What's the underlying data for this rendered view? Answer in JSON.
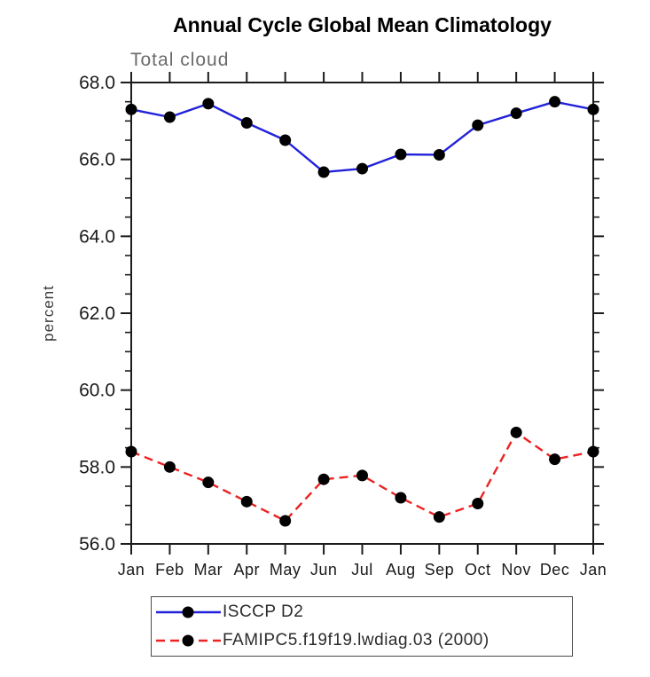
{
  "chart_data": {
    "type": "line",
    "title": "Annual Cycle Global Mean Climatology",
    "subtitle": "Total cloud",
    "ylabel": "percent",
    "xlabel": "",
    "x_categories": [
      "Jan",
      "Feb",
      "Mar",
      "Apr",
      "May",
      "Jun",
      "Jul",
      "Aug",
      "Sep",
      "Oct",
      "Nov",
      "Dec",
      "Jan"
    ],
    "ylim": [
      56.0,
      68.0
    ],
    "y_major_tick_step": 2.0,
    "y_minor_tick_step": 0.5,
    "y_major_tick_labels": [
      "56.0",
      "58.0",
      "60.0",
      "62.0",
      "64.0",
      "66.0",
      "68.0"
    ],
    "grid": "off",
    "legend_position": "below-left",
    "marker": {
      "shape": "filled-circle",
      "color": "#000000"
    },
    "series": [
      {
        "name": "ISCCP D2",
        "line_style": "solid",
        "color": "#2121d9",
        "values": [
          67.3,
          67.1,
          67.45,
          66.95,
          66.5,
          65.67,
          65.76,
          66.13,
          66.12,
          66.89,
          67.2,
          67.5,
          67.3
        ]
      },
      {
        "name": "FAMIPC5.f19f19.lwdiag.03 (2000)",
        "line_style": "dashed",
        "color": "#ed2222",
        "values": [
          58.4,
          58.0,
          57.6,
          57.1,
          56.6,
          57.68,
          57.78,
          57.2,
          56.7,
          57.05,
          58.9,
          58.2,
          58.4
        ]
      }
    ],
    "colors": {
      "axis": "#1c1c1c",
      "tick_label": "#1a1a1a",
      "title": "#000000",
      "subtitle": "#6b6b6b",
      "legend_border": "#4a4a4a"
    }
  }
}
